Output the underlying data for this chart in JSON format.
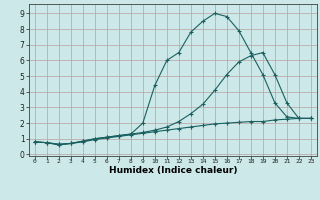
{
  "title": "",
  "xlabel": "Humidex (Indice chaleur)",
  "ylabel": "",
  "background_color": "#cce8e8",
  "grid_color": "#b8a0a0",
  "line_color": "#1a6060",
  "xlim": [
    -0.5,
    23.5
  ],
  "ylim": [
    -0.1,
    9.6
  ],
  "xticks": [
    0,
    1,
    2,
    3,
    4,
    5,
    6,
    7,
    8,
    9,
    10,
    11,
    12,
    13,
    14,
    15,
    16,
    17,
    18,
    19,
    20,
    21,
    22,
    23
  ],
  "yticks": [
    0,
    1,
    2,
    3,
    4,
    5,
    6,
    7,
    8,
    9
  ],
  "series": [
    {
      "x": [
        0,
        1,
        2,
        3,
        4,
        5,
        6,
        7,
        8,
        9,
        10,
        11,
        12,
        13,
        14,
        15,
        16,
        17,
        18,
        19,
        20,
        21,
        22,
        23
      ],
      "y": [
        0.8,
        0.75,
        0.6,
        0.7,
        0.8,
        0.95,
        1.05,
        1.15,
        1.25,
        1.35,
        1.45,
        1.55,
        1.65,
        1.75,
        1.85,
        1.95,
        2.0,
        2.05,
        2.1,
        2.1,
        2.2,
        2.25,
        2.3,
        2.3
      ]
    },
    {
      "x": [
        0,
        1,
        2,
        3,
        4,
        5,
        6,
        7,
        8,
        9,
        10,
        11,
        12,
        13,
        14,
        15,
        16,
        17,
        18,
        19,
        20,
        21,
        22,
        23
      ],
      "y": [
        0.8,
        0.75,
        0.65,
        0.7,
        0.85,
        1.0,
        1.1,
        1.2,
        1.3,
        2.0,
        4.4,
        6.0,
        6.5,
        7.8,
        8.5,
        9.0,
        8.8,
        7.9,
        6.5,
        5.1,
        3.3,
        2.4,
        2.3,
        2.3
      ]
    },
    {
      "x": [
        0,
        1,
        2,
        3,
        4,
        5,
        6,
        7,
        8,
        9,
        10,
        11,
        12,
        13,
        14,
        15,
        16,
        17,
        18,
        19,
        20,
        21,
        22,
        23
      ],
      "y": [
        0.8,
        0.75,
        0.65,
        0.7,
        0.85,
        1.0,
        1.1,
        1.2,
        1.3,
        1.4,
        1.55,
        1.75,
        2.1,
        2.6,
        3.2,
        4.1,
        5.1,
        5.9,
        6.3,
        6.5,
        5.1,
        3.3,
        2.3,
        2.3
      ]
    }
  ]
}
